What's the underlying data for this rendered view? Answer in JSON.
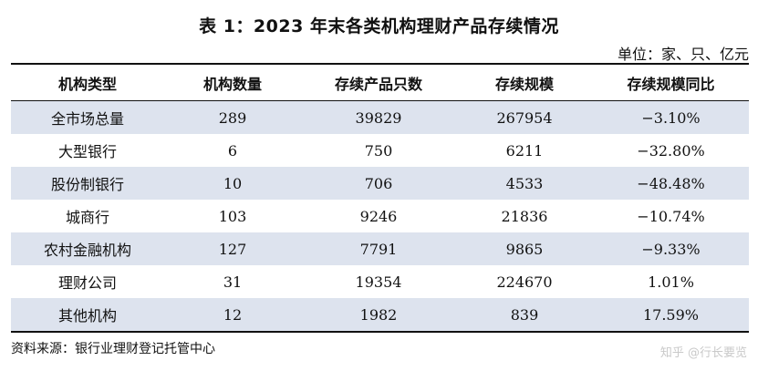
{
  "title": "表 1：2023 年末各类机构理财产品存续情况",
  "unit": "单位：家、只、亿元",
  "columns": [
    "机构类型",
    "机构数量",
    "存续产品只数",
    "存续规模",
    "存续规模同比"
  ],
  "rows": [
    [
      "全市场总量",
      "289",
      "39829",
      "267954",
      "−3.10%"
    ],
    [
      "大型银行",
      "6",
      "750",
      "6211",
      "−32.80%"
    ],
    [
      "股份制银行",
      "10",
      "706",
      "4533",
      "−48.48%"
    ],
    [
      "城商行",
      "103",
      "9246",
      "21836",
      "−10.74%"
    ],
    [
      "农村金融机构",
      "127",
      "7791",
      "9865",
      "−9.33%"
    ],
    [
      "理财公司",
      "31",
      "19354",
      "224670",
      "1.01%"
    ],
    [
      "其他机构",
      "12",
      "1982",
      "839",
      "17.59%"
    ]
  ],
  "source": "资料来源：银行业理财登记托管中心",
  "watermark": "知乎 @行长要览",
  "colors": {
    "shaded_row": "#dde3ee",
    "rule": "#111111"
  }
}
